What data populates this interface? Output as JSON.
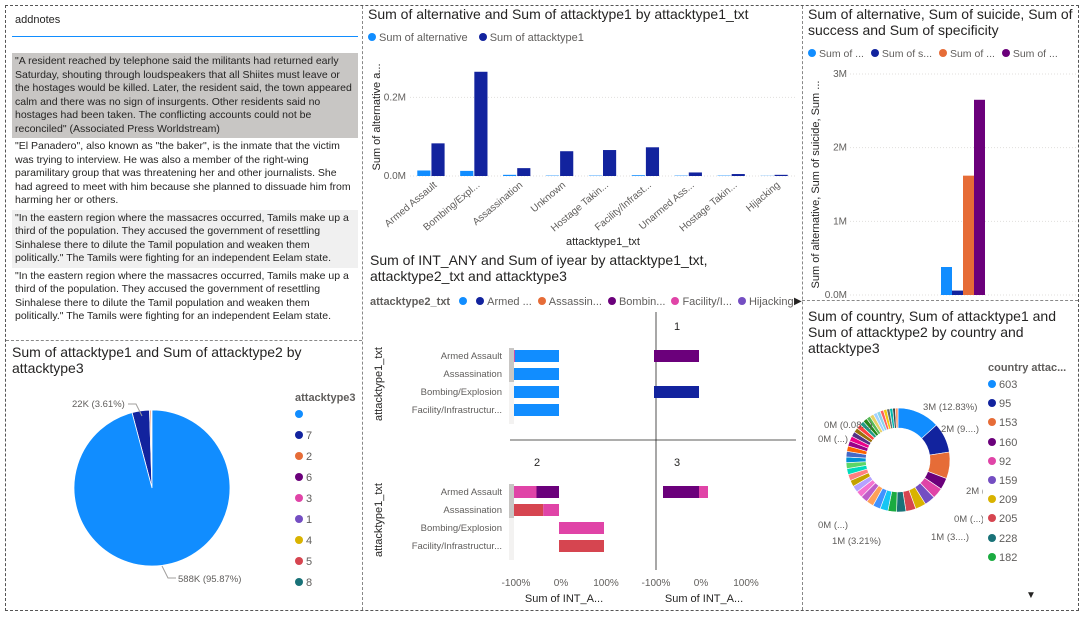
{
  "notes_table": {
    "header": "addnotes",
    "rows": [
      "\"A resident reached by telephone said the militants had returned early Saturday, shouting through loudspeakers that all Shiites must leave or the hostages would be killed. Later, the resident said, the town appeared calm and there was no sign of insurgents. Other residents said no hostages had been taken. The conflicting accounts could not be reconciled\" (Associated Press Worldstream)",
      "\"El Panadero\", also known as \"the baker\", is the inmate that the victim was trying to interview. He was also a member of the right-wing paramilitary group that was threatening her and other journalists. She had agreed to meet with him because she planned to dissuade him from harming her or others.",
      "\"In the eastern region where the massacres occurred, Tamils make up a third of the population. They accused the government of resettling Sinhalese there to dilute the Tamil population and weaken them politically.\" The Tamils were fighting for an independent Eelam state.",
      "\"In the eastern region where the massacres occurred, Tamils make up a third of the population. They accused the government of resettling Sinhalese there to dilute the Tamil population and weaken them politically.\" The Tamils were fighting for an independent Eelam state."
    ]
  },
  "chart_data": [
    {
      "id": "bar1",
      "type": "bar",
      "title": "Sum of alternative and Sum of attacktype1 by attacktype1_txt",
      "xlabel": "attacktype1_txt",
      "ylabel": "Sum of alternative a...",
      "categories": [
        "Armed Assault",
        "Bombing/Expl...",
        "Assassination",
        "Unknown",
        "Hostage Takin...",
        "Facility/Infrast...",
        "Unarmed Ass...",
        "Hostage Takin...",
        "Hijacking"
      ],
      "series": [
        {
          "name": "Sum of alternative",
          "color": "#118DFF",
          "values": [
            14000,
            13000,
            3000,
            1000,
            1000,
            2000,
            1000,
            1000,
            500
          ]
        },
        {
          "name": "Sum of attacktype1",
          "color": "#12239E",
          "values": [
            83000,
            265000,
            20000,
            63000,
            66000,
            73000,
            9000,
            5000,
            3000
          ]
        }
      ],
      "ylim": [
        0,
        300000
      ],
      "yticks": [
        {
          "v": 0,
          "label": "0.0M"
        },
        {
          "v": 200000,
          "label": "0.2M"
        }
      ]
    },
    {
      "id": "bar2",
      "type": "bar",
      "title": "Sum of alternative, Sum of suicide, Sum of success and Sum of specificity",
      "ylabel": "Sum of alternative, Sum of suicide, Sum ...",
      "series": [
        {
          "name": "Sum of ...",
          "color": "#118DFF",
          "value": 380000
        },
        {
          "name": "Sum of s...",
          "color": "#12239E",
          "value": 60000
        },
        {
          "name": "Sum of ...",
          "color": "#E66C37",
          "value": 1620000
        },
        {
          "name": "Sum of ...",
          "color": "#6B007B",
          "value": 2650000
        }
      ],
      "ylim": [
        0,
        3000000
      ],
      "yticks": [
        {
          "v": 0,
          "label": "0.0M"
        },
        {
          "v": 1000000,
          "label": "1M"
        },
        {
          "v": 2000000,
          "label": "2M"
        },
        {
          "v": 3000000,
          "label": "3M"
        }
      ]
    },
    {
      "id": "smallmult",
      "type": "bar",
      "title": "Sum of INT_ANY and Sum of iyear by attacktype1_txt, attacktype2_txt and attacktype3",
      "legend_title": "attacktype2_txt",
      "legend": [
        {
          "name": "",
          "color": "#118DFF"
        },
        {
          "name": "Armed ...",
          "color": "#12239E"
        },
        {
          "name": "Assassin...",
          "color": "#E66C37"
        },
        {
          "name": "Bombin...",
          "color": "#6B007B"
        },
        {
          "name": "Facility/I...",
          "color": "#E044A7"
        },
        {
          "name": "Hijacking",
          "color": "#744EC2"
        }
      ],
      "ylabel": "attacktype1_txt",
      "xlabel": "Sum of INT_A...",
      "xticks": [
        "-100%",
        "0%",
        "100%"
      ],
      "panels": [
        {
          "label": "",
          "categories": [
            "Armed Assault",
            "Assassination",
            "Bombing/Explosion",
            "Facility/Infrastructur..."
          ],
          "bars": [
            [
              {
                "color": "#E044A7",
                "from": -100,
                "to": -98
              },
              {
                "color": "#118DFF",
                "from": -98,
                "to": 0
              }
            ],
            [
              {
                "color": "#118DFF",
                "from": -100,
                "to": 0
              }
            ],
            [
              {
                "color": "#118DFF",
                "from": -100,
                "to": 0
              }
            ],
            [
              {
                "color": "#118DFF",
                "from": -100,
                "to": 0
              }
            ]
          ]
        },
        {
          "label": "1",
          "categories": [
            "Armed Assault",
            "Assassination",
            "Bombing/Explosion",
            "Facility/Infrastructur..."
          ],
          "bars": [
            [
              {
                "color": "#6B007B",
                "from": -100,
                "to": 0
              }
            ],
            [],
            [
              {
                "color": "#12239E",
                "from": -100,
                "to": 0
              }
            ],
            []
          ]
        },
        {
          "label": "2",
          "categories": [
            "Armed Assault",
            "Assassination",
            "Bombing/Explosion",
            "Facility/Infrastructur..."
          ],
          "bars": [
            [
              {
                "color": "#E044A7",
                "from": -100,
                "to": -50
              },
              {
                "color": "#6B007B",
                "from": -50,
                "to": 0
              }
            ],
            [
              {
                "color": "#D64550",
                "from": -100,
                "to": -35
              },
              {
                "color": "#E044A7",
                "from": -35,
                "to": 0
              }
            ],
            [
              {
                "color": "#E044A7",
                "from": 0,
                "to": 100
              }
            ],
            [
              {
                "color": "#D64550",
                "from": 0,
                "to": 100
              }
            ]
          ]
        },
        {
          "label": "3",
          "categories": [
            "Armed Assault",
            "Assassination",
            "Bombing/Explosion",
            "Facility/Infrastructur..."
          ],
          "bars": [
            [
              {
                "color": "#6B007B",
                "from": -80,
                "to": 0
              },
              {
                "color": "#E044A7",
                "from": 0,
                "to": 20
              }
            ],
            [],
            [],
            []
          ]
        }
      ]
    },
    {
      "id": "pie",
      "type": "pie",
      "title": "Sum of attacktype1 and Sum of attacktype2 by attacktype3",
      "legend_title": "attacktype3",
      "legend": [
        {
          "name": "",
          "color": "#118DFF"
        },
        {
          "name": "7",
          "color": "#12239E"
        },
        {
          "name": "2",
          "color": "#E66C37"
        },
        {
          "name": "6",
          "color": "#6B007B"
        },
        {
          "name": "3",
          "color": "#E044A7"
        },
        {
          "name": "1",
          "color": "#744EC2"
        },
        {
          "name": "4",
          "color": "#D9B300"
        },
        {
          "name": "5",
          "color": "#D64550"
        },
        {
          "name": "8",
          "color": "#197278"
        }
      ],
      "slices": [
        {
          "name": "",
          "value": 95.87,
          "label": "588K (95.87%)",
          "color": "#118DFF"
        },
        {
          "name": "7",
          "value": 3.61,
          "label": "22K (3.61%)",
          "color": "#12239E"
        },
        {
          "name": "2",
          "value": 0.3,
          "color": "#E66C37"
        },
        {
          "name": "6",
          "value": 0.1,
          "color": "#6B007B"
        },
        {
          "name": "3",
          "value": 0.1,
          "color": "#E044A7"
        },
        {
          "name": "other",
          "value": 0.01,
          "color": "#744EC2"
        }
      ]
    },
    {
      "id": "donut",
      "type": "pie",
      "title": "Sum of country, Sum of attacktype1 and Sum of attacktype2 by country and attacktype3",
      "legend_title": "country attac...",
      "legend": [
        {
          "name": "603",
          "color": "#118DFF"
        },
        {
          "name": "95",
          "color": "#12239E"
        },
        {
          "name": "153",
          "color": "#E66C37"
        },
        {
          "name": "160",
          "color": "#6B007B"
        },
        {
          "name": "92",
          "color": "#E044A7"
        },
        {
          "name": "159",
          "color": "#744EC2"
        },
        {
          "name": "209",
          "color": "#D9B300"
        },
        {
          "name": "205",
          "color": "#D64550"
        },
        {
          "name": "228",
          "color": "#197278"
        },
        {
          "name": "182",
          "color": "#1AAB40"
        }
      ],
      "slices": [
        {
          "name": "603",
          "value": 12.83,
          "color": "#118DFF"
        },
        {
          "name": "95",
          "value": 9,
          "color": "#12239E"
        },
        {
          "name": "153",
          "value": 8,
          "color": "#E66C37"
        },
        {
          "name": "160",
          "value": 3.5,
          "color": "#6B007B"
        },
        {
          "name": "92",
          "value": 3.3,
          "color": "#E044A7"
        },
        {
          "name": "159",
          "value": 3.2,
          "color": "#744EC2"
        },
        {
          "name": "209",
          "value": 3.21,
          "color": "#D9B300"
        },
        {
          "name": "205",
          "value": 3.0,
          "color": "#D64550"
        },
        {
          "name": "228",
          "value": 2.8,
          "color": "#197278"
        },
        {
          "name": "182",
          "value": 2.6,
          "color": "#1AAB40"
        },
        {
          "name": "o1",
          "value": 2.4,
          "color": "#15C6F4"
        },
        {
          "name": "o2",
          "value": 2.3,
          "color": "#4092FF"
        },
        {
          "name": "o3",
          "value": 2.2,
          "color": "#FFA058"
        },
        {
          "name": "o4",
          "value": 2.1,
          "color": "#BE5DC9"
        },
        {
          "name": "o5",
          "value": 2.0,
          "color": "#F472D0"
        },
        {
          "name": "o6",
          "value": 2.0,
          "color": "#B5A1FF"
        },
        {
          "name": "o7",
          "value": 1.9,
          "color": "#C4A200"
        },
        {
          "name": "o8",
          "value": 1.9,
          "color": "#FF8080"
        },
        {
          "name": "o9",
          "value": 1.8,
          "color": "#00DBBC"
        },
        {
          "name": "o10",
          "value": 1.8,
          "color": "#5BD667"
        },
        {
          "name": "o11",
          "value": 1.7,
          "color": "#0091D5"
        },
        {
          "name": "o12",
          "value": 1.7,
          "color": "#4668C5"
        },
        {
          "name": "o13",
          "value": 1.6,
          "color": "#FF6300"
        },
        {
          "name": "o14",
          "value": 1.6,
          "color": "#99008A"
        },
        {
          "name": "o15",
          "value": 1.5,
          "color": "#EC008C"
        },
        {
          "name": "o16",
          "value": 1.5,
          "color": "#533285"
        },
        {
          "name": "o17",
          "value": 1.4,
          "color": "#99700A"
        },
        {
          "name": "o18",
          "value": 1.4,
          "color": "#FF4141"
        },
        {
          "name": "o19",
          "value": 1.3,
          "color": "#1F9A85"
        },
        {
          "name": "o20",
          "value": 1.3,
          "color": "#25891C"
        },
        {
          "name": "o21",
          "value": 1.2,
          "color": "#57B956"
        },
        {
          "name": "o22",
          "value": 1.2,
          "color": "#E8D166"
        },
        {
          "name": "o23",
          "value": 1.1,
          "color": "#A0D1FF"
        },
        {
          "name": "o24",
          "value": 1.1,
          "color": "#8AD4EB"
        },
        {
          "name": "o25",
          "value": 1.0,
          "color": "#FD625E"
        },
        {
          "name": "o26",
          "value": 1.0,
          "color": "#F2C80F"
        },
        {
          "name": "o27",
          "value": 0.9,
          "color": "#5F6B6D"
        },
        {
          "name": "o28",
          "value": 0.9,
          "color": "#01B8AA"
        },
        {
          "name": "o29",
          "value": 0.8,
          "color": "#374649"
        },
        {
          "name": "o30",
          "value": 0.8,
          "color": "#FE9666"
        }
      ],
      "labels": [
        "3M (12.83%)",
        "2M (9....)",
        "2M (8....)",
        "0M (...)",
        "1M (3....)",
        "1M (3.21%)",
        "0M (...)",
        "0M (...)",
        "0M (0.08...)"
      ]
    }
  ]
}
